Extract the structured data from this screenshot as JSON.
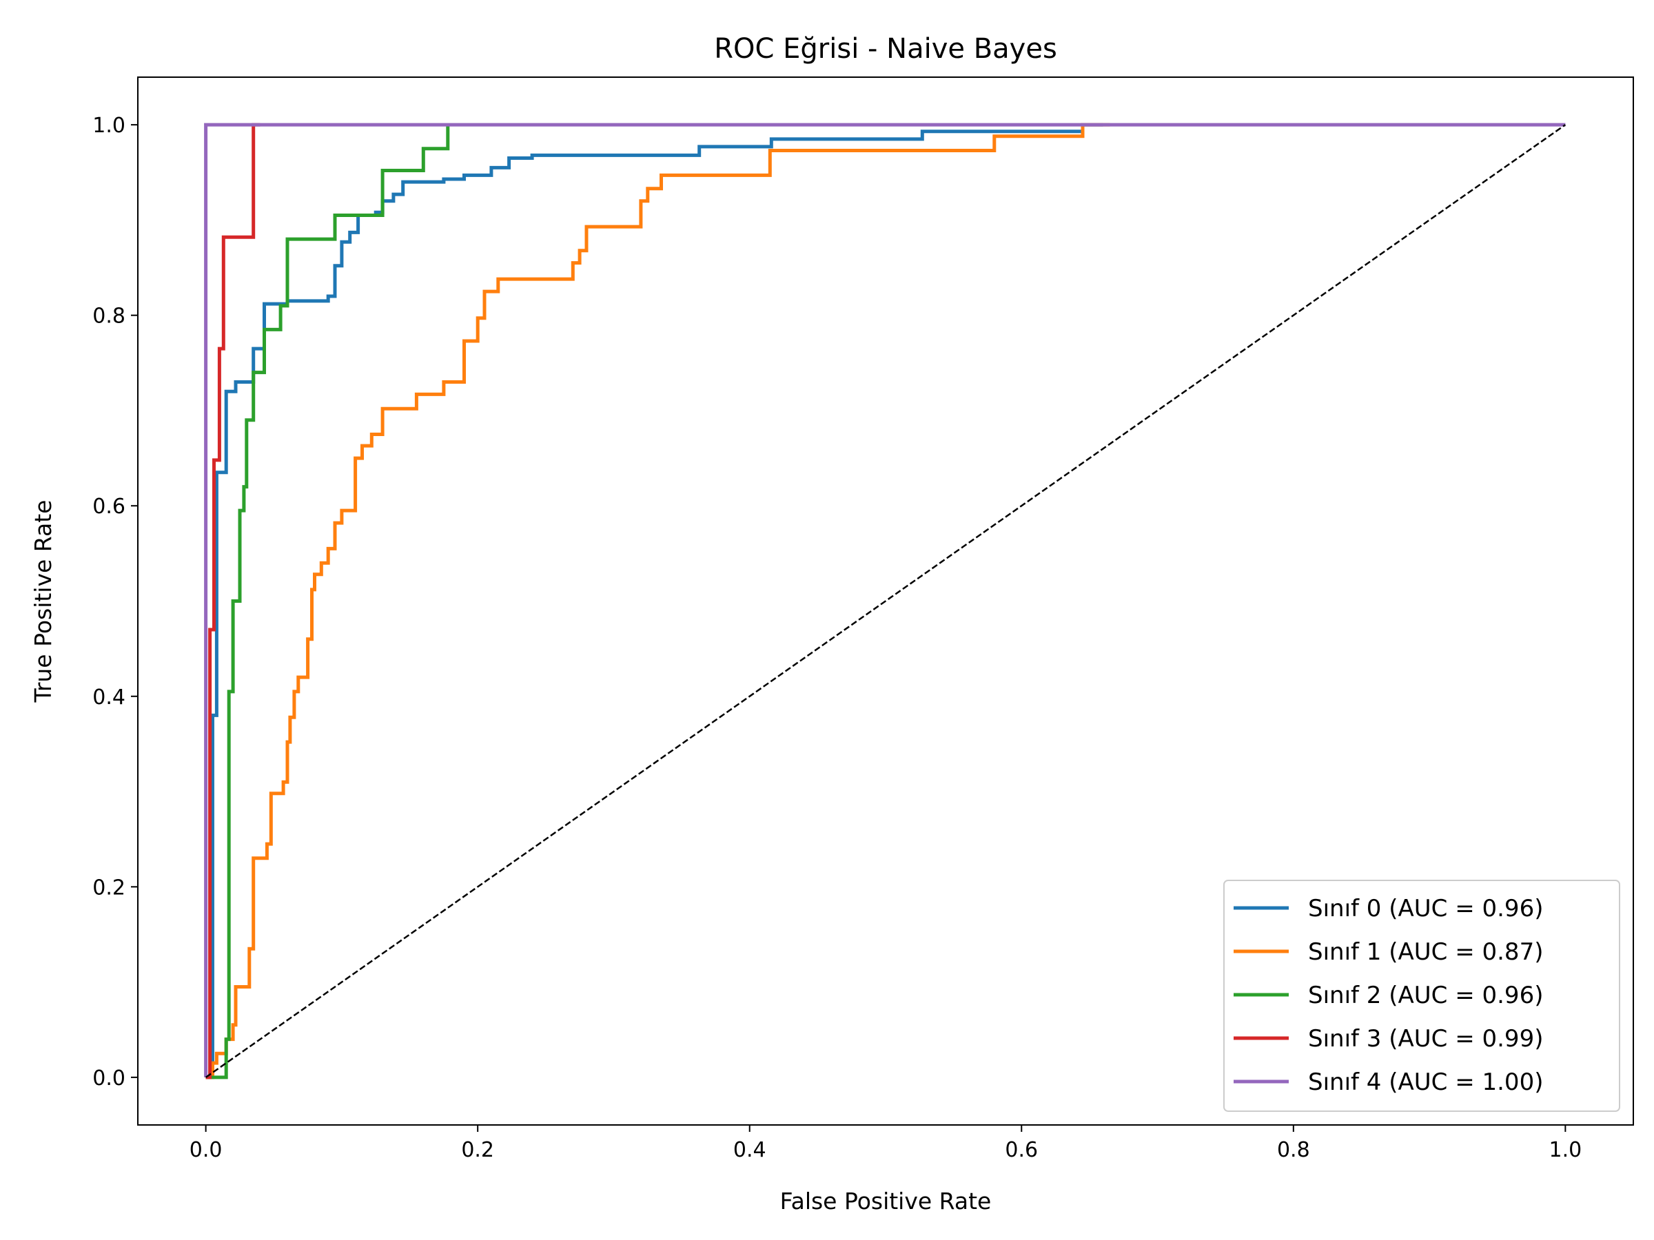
{
  "chart_data": {
    "type": "line",
    "title": "ROC Eğrisi - Naive Bayes",
    "xlabel": "False Positive Rate",
    "ylabel": "True Positive Rate",
    "xlim": [
      -0.05,
      1.05
    ],
    "ylim": [
      -0.05,
      1.05
    ],
    "xticks": [
      0.0,
      0.2,
      0.4,
      0.6,
      0.8,
      1.0
    ],
    "yticks": [
      0.0,
      0.2,
      0.4,
      0.6,
      0.8,
      1.0
    ],
    "xtick_labels": [
      "0.0",
      "0.2",
      "0.4",
      "0.6",
      "0.8",
      "1.0"
    ],
    "ytick_labels": [
      "0.0",
      "0.2",
      "0.4",
      "0.6",
      "0.8",
      "1.0"
    ],
    "grid": false,
    "legend_position": "lower-right",
    "diagonal": {
      "x": [
        0,
        1
      ],
      "y": [
        0,
        1
      ],
      "color": "#000000",
      "style": "dashed"
    },
    "series": [
      {
        "name": "Sınıf 0 (AUC = 0.96)",
        "color": "#1f77b4",
        "x": [
          0,
          0.005,
          0.005,
          0.008,
          0.008,
          0.015,
          0.015,
          0.022,
          0.022,
          0.035,
          0.035,
          0.043,
          0.043,
          0.06,
          0.06,
          0.09,
          0.09,
          0.095,
          0.095,
          0.1,
          0.1,
          0.106,
          0.106,
          0.112,
          0.112,
          0.125,
          0.125,
          0.13,
          0.13,
          0.138,
          0.138,
          0.145,
          0.145,
          0.175,
          0.175,
          0.19,
          0.19,
          0.21,
          0.21,
          0.223,
          0.223,
          0.24,
          0.24,
          0.363,
          0.363,
          0.368,
          0.368,
          0.416,
          0.416,
          0.527,
          0.527,
          0.645,
          0.645,
          0.66
        ],
        "y": [
          0,
          0,
          0.38,
          0.38,
          0.635,
          0.635,
          0.72,
          0.72,
          0.73,
          0.73,
          0.765,
          0.765,
          0.812,
          0.812,
          0.815,
          0.815,
          0.82,
          0.82,
          0.852,
          0.852,
          0.877,
          0.877,
          0.887,
          0.887,
          0.905,
          0.905,
          0.908,
          0.908,
          0.92,
          0.92,
          0.927,
          0.927,
          0.94,
          0.94,
          0.943,
          0.943,
          0.947,
          0.947,
          0.955,
          0.955,
          0.965,
          0.965,
          0.968,
          0.968,
          0.977,
          0.977,
          0.977,
          0.977,
          0.985,
          0.985,
          0.993,
          0.993,
          1.0,
          1.0
        ]
      },
      {
        "name": "Sınıf 1 (AUC = 0.87)",
        "color": "#ff7f0e",
        "x": [
          0,
          0.005,
          0.005,
          0.008,
          0.008,
          0.015,
          0.015,
          0.02,
          0.02,
          0.022,
          0.022,
          0.032,
          0.032,
          0.035,
          0.035,
          0.045,
          0.045,
          0.048,
          0.048,
          0.057,
          0.057,
          0.06,
          0.06,
          0.062,
          0.062,
          0.065,
          0.065,
          0.068,
          0.068,
          0.075,
          0.075,
          0.078,
          0.078,
          0.08,
          0.08,
          0.085,
          0.085,
          0.09,
          0.09,
          0.095,
          0.095,
          0.1,
          0.1,
          0.11,
          0.11,
          0.115,
          0.115,
          0.122,
          0.122,
          0.13,
          0.13,
          0.155,
          0.155,
          0.175,
          0.175,
          0.19,
          0.19,
          0.2,
          0.2,
          0.205,
          0.205,
          0.215,
          0.215,
          0.22,
          0.22,
          0.27,
          0.27,
          0.275,
          0.275,
          0.28,
          0.28,
          0.32,
          0.32,
          0.325,
          0.325,
          0.335,
          0.335,
          0.415,
          0.415,
          0.58,
          0.58,
          0.645,
          0.645,
          0.665
        ],
        "y": [
          0,
          0,
          0.015,
          0.015,
          0.025,
          0.025,
          0.04,
          0.04,
          0.055,
          0.055,
          0.095,
          0.095,
          0.135,
          0.135,
          0.23,
          0.23,
          0.245,
          0.245,
          0.298,
          0.298,
          0.31,
          0.31,
          0.352,
          0.352,
          0.378,
          0.378,
          0.405,
          0.405,
          0.42,
          0.42,
          0.46,
          0.46,
          0.512,
          0.512,
          0.528,
          0.528,
          0.54,
          0.54,
          0.555,
          0.555,
          0.582,
          0.582,
          0.595,
          0.595,
          0.65,
          0.65,
          0.663,
          0.663,
          0.675,
          0.675,
          0.702,
          0.702,
          0.717,
          0.717,
          0.73,
          0.73,
          0.773,
          0.773,
          0.797,
          0.797,
          0.825,
          0.825,
          0.838,
          0.838,
          0.838,
          0.838,
          0.855,
          0.855,
          0.868,
          0.868,
          0.893,
          0.893,
          0.92,
          0.92,
          0.933,
          0.933,
          0.947,
          0.947,
          0.973,
          0.973,
          0.988,
          0.988,
          1.0,
          1.0
        ]
      },
      {
        "name": "Sınıf 2 (AUC = 0.96)",
        "color": "#2ca02c",
        "x": [
          0,
          0.015,
          0.015,
          0.017,
          0.017,
          0.02,
          0.02,
          0.025,
          0.025,
          0.028,
          0.028,
          0.03,
          0.03,
          0.035,
          0.035,
          0.043,
          0.043,
          0.055,
          0.055,
          0.06,
          0.06,
          0.095,
          0.095,
          0.13,
          0.13,
          0.16,
          0.16,
          0.178,
          0.178
        ],
        "y": [
          0,
          0,
          0.04,
          0.04,
          0.405,
          0.405,
          0.5,
          0.5,
          0.595,
          0.595,
          0.62,
          0.62,
          0.69,
          0.69,
          0.74,
          0.74,
          0.785,
          0.785,
          0.81,
          0.81,
          0.88,
          0.88,
          0.905,
          0.905,
          0.952,
          0.952,
          0.975,
          0.975,
          1.0
        ]
      },
      {
        "name": "Sınıf 3 (AUC = 0.99)",
        "color": "#d62728",
        "x": [
          0,
          0.003,
          0.003,
          0.006,
          0.006,
          0.01,
          0.01,
          0.013,
          0.013,
          0.035,
          0.035,
          0.04
        ],
        "y": [
          0,
          0,
          0.47,
          0.47,
          0.648,
          0.648,
          0.765,
          0.765,
          0.882,
          0.882,
          1.0,
          1.0
        ]
      },
      {
        "name": "Sınıf 4 (AUC = 1.00)",
        "color": "#9467bd",
        "x": [
          0,
          0,
          1.0
        ],
        "y": [
          0,
          1.0,
          1.0
        ]
      }
    ]
  }
}
